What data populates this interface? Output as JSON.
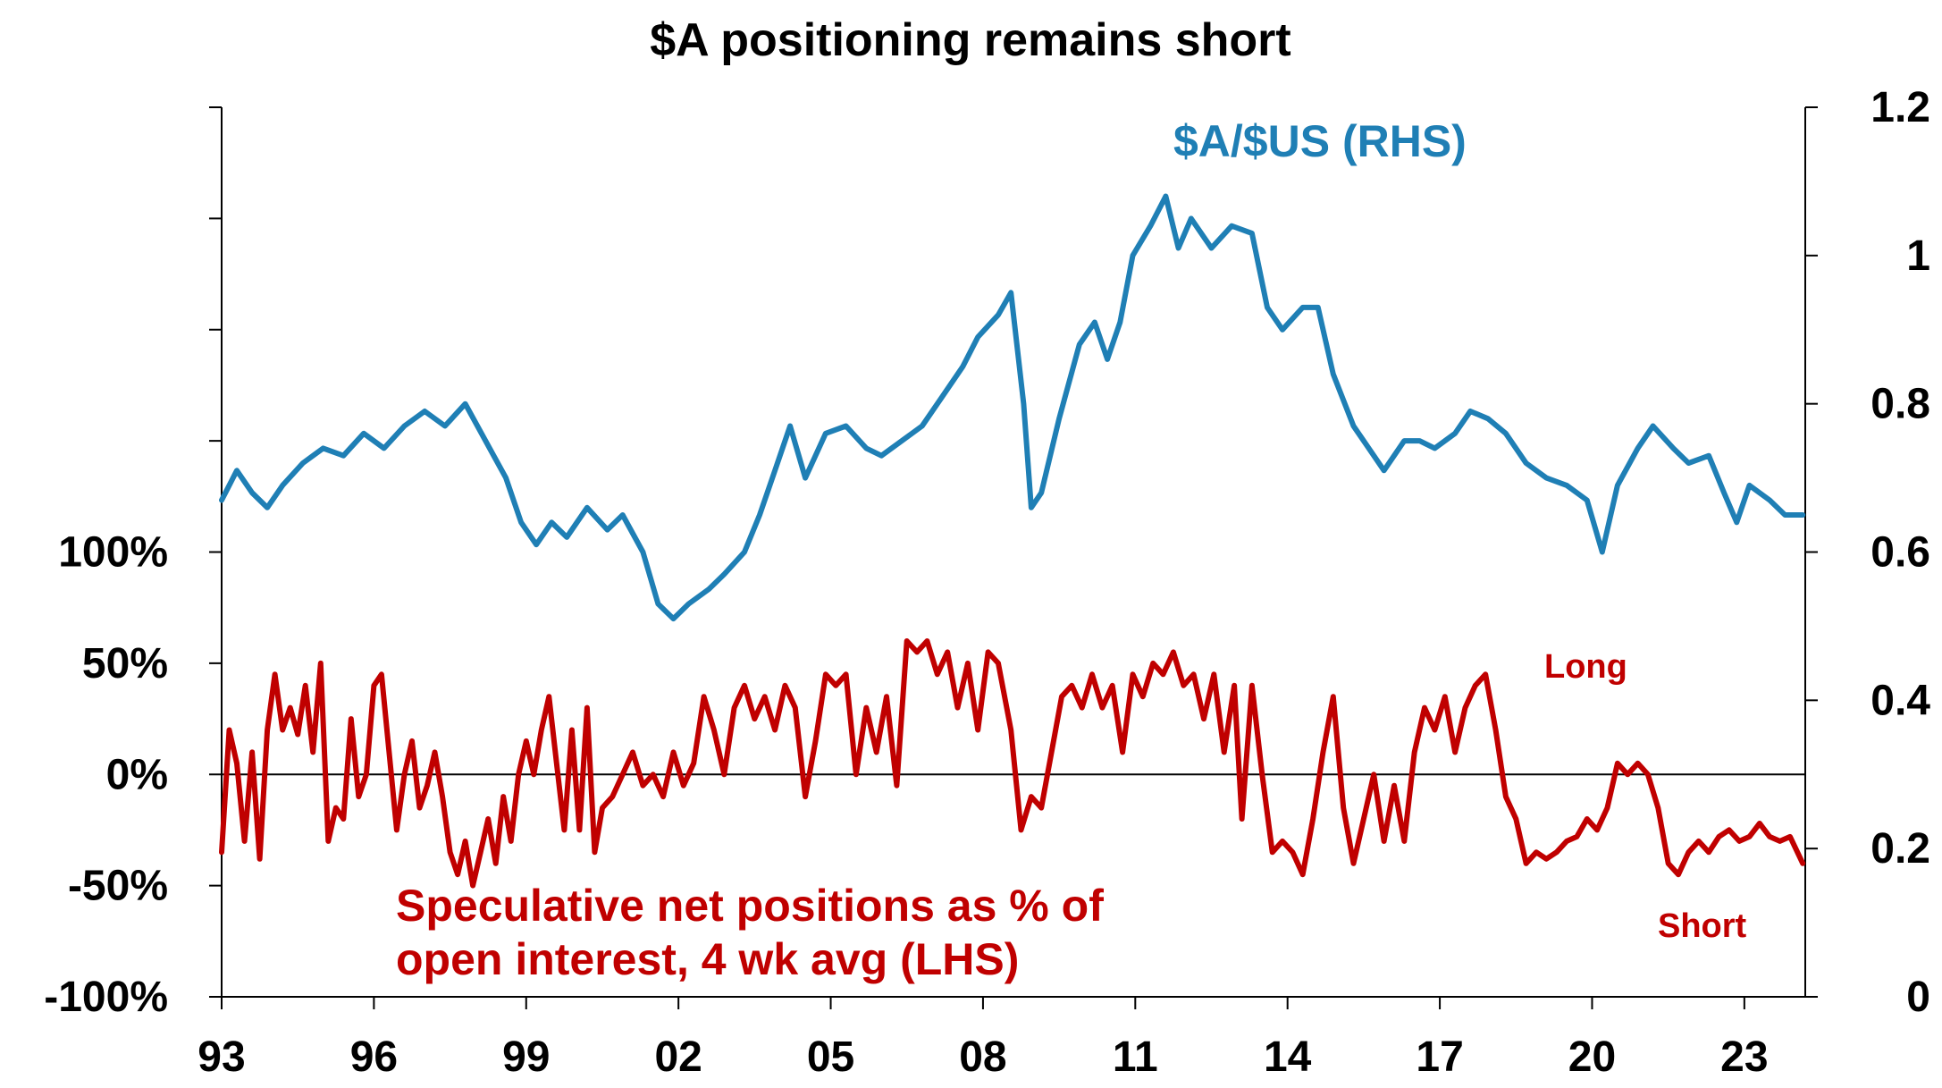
{
  "chart_data": {
    "type": "line",
    "title": "$A positioning remains short",
    "x_tick_labels": [
      "93",
      "96",
      "99",
      "02",
      "05",
      "08",
      "11",
      "14",
      "17",
      "20",
      "23"
    ],
    "x_tick_years": [
      1993,
      1996,
      1999,
      2002,
      2005,
      2008,
      2011,
      2014,
      2017,
      2020,
      2023
    ],
    "x_range": [
      1993,
      2024.2
    ],
    "left_axis": {
      "range": [
        -100,
        300
      ],
      "tick_values": [
        -100,
        -50,
        0,
        50,
        100
      ],
      "tick_labels": [
        "-100%",
        "-50%",
        "0%",
        "50%",
        "100%"
      ],
      "minor_tick_values": [
        150,
        200,
        250,
        300
      ]
    },
    "right_axis": {
      "range": [
        0,
        1.2
      ],
      "tick_values": [
        0,
        0.2,
        0.4,
        0.6,
        0.8,
        1.0,
        1.2
      ],
      "tick_labels": [
        "0",
        "0.2",
        "0.4",
        "0.6",
        "0.8",
        "1",
        "1.2"
      ]
    },
    "annotations": {
      "long": "Long",
      "short": "Short"
    },
    "colors": {
      "aud": "#1f7fb5",
      "positions": "#c00000",
      "axis": "#000000"
    },
    "series": [
      {
        "name": "$A/$US (RHS)",
        "axis": "right",
        "points": [
          [
            1993.0,
            0.67
          ],
          [
            1993.3,
            0.71
          ],
          [
            1993.6,
            0.68
          ],
          [
            1993.9,
            0.66
          ],
          [
            1994.2,
            0.69
          ],
          [
            1994.6,
            0.72
          ],
          [
            1995.0,
            0.74
          ],
          [
            1995.4,
            0.73
          ],
          [
            1995.8,
            0.76
          ],
          [
            1996.2,
            0.74
          ],
          [
            1996.6,
            0.77
          ],
          [
            1997.0,
            0.79
          ],
          [
            1997.4,
            0.77
          ],
          [
            1997.8,
            0.8
          ],
          [
            1998.2,
            0.75
          ],
          [
            1998.6,
            0.7
          ],
          [
            1998.9,
            0.64
          ],
          [
            1999.2,
            0.61
          ],
          [
            1999.5,
            0.64
          ],
          [
            1999.8,
            0.62
          ],
          [
            2000.2,
            0.66
          ],
          [
            2000.6,
            0.63
          ],
          [
            2000.9,
            0.65
          ],
          [
            2001.3,
            0.6
          ],
          [
            2001.6,
            0.53
          ],
          [
            2001.9,
            0.51
          ],
          [
            2002.2,
            0.53
          ],
          [
            2002.6,
            0.55
          ],
          [
            2002.9,
            0.57
          ],
          [
            2003.3,
            0.6
          ],
          [
            2003.6,
            0.65
          ],
          [
            2003.9,
            0.71
          ],
          [
            2004.2,
            0.77
          ],
          [
            2004.5,
            0.7
          ],
          [
            2004.9,
            0.76
          ],
          [
            2005.3,
            0.77
          ],
          [
            2005.7,
            0.74
          ],
          [
            2006.0,
            0.73
          ],
          [
            2006.4,
            0.75
          ],
          [
            2006.8,
            0.77
          ],
          [
            2007.2,
            0.81
          ],
          [
            2007.6,
            0.85
          ],
          [
            2007.9,
            0.89
          ],
          [
            2008.3,
            0.92
          ],
          [
            2008.55,
            0.95
          ],
          [
            2008.8,
            0.8
          ],
          [
            2008.95,
            0.66
          ],
          [
            2009.15,
            0.68
          ],
          [
            2009.5,
            0.78
          ],
          [
            2009.9,
            0.88
          ],
          [
            2010.2,
            0.91
          ],
          [
            2010.45,
            0.86
          ],
          [
            2010.7,
            0.91
          ],
          [
            2010.95,
            1.0
          ],
          [
            2011.3,
            1.04
          ],
          [
            2011.6,
            1.08
          ],
          [
            2011.85,
            1.01
          ],
          [
            2012.1,
            1.05
          ],
          [
            2012.5,
            1.01
          ],
          [
            2012.9,
            1.04
          ],
          [
            2013.3,
            1.03
          ],
          [
            2013.6,
            0.93
          ],
          [
            2013.9,
            0.9
          ],
          [
            2014.3,
            0.93
          ],
          [
            2014.6,
            0.93
          ],
          [
            2014.9,
            0.84
          ],
          [
            2015.3,
            0.77
          ],
          [
            2015.6,
            0.74
          ],
          [
            2015.9,
            0.71
          ],
          [
            2016.3,
            0.75
          ],
          [
            2016.6,
            0.75
          ],
          [
            2016.9,
            0.74
          ],
          [
            2017.3,
            0.76
          ],
          [
            2017.6,
            0.79
          ],
          [
            2017.95,
            0.78
          ],
          [
            2018.3,
            0.76
          ],
          [
            2018.7,
            0.72
          ],
          [
            2019.1,
            0.7
          ],
          [
            2019.5,
            0.69
          ],
          [
            2019.9,
            0.67
          ],
          [
            2020.2,
            0.6
          ],
          [
            2020.5,
            0.69
          ],
          [
            2020.9,
            0.74
          ],
          [
            2021.2,
            0.77
          ],
          [
            2021.6,
            0.74
          ],
          [
            2021.9,
            0.72
          ],
          [
            2022.3,
            0.73
          ],
          [
            2022.6,
            0.68
          ],
          [
            2022.85,
            0.64
          ],
          [
            2023.1,
            0.69
          ],
          [
            2023.5,
            0.67
          ],
          [
            2023.8,
            0.65
          ],
          [
            2024.15,
            0.65
          ]
        ]
      },
      {
        "name": "Speculative net positions as % of open interest, 4 wk avg (LHS)",
        "axis": "left",
        "points": [
          [
            1993.0,
            -35
          ],
          [
            1993.15,
            20
          ],
          [
            1993.3,
            5
          ],
          [
            1993.45,
            -30
          ],
          [
            1993.6,
            10
          ],
          [
            1993.75,
            -38
          ],
          [
            1993.9,
            20
          ],
          [
            1994.05,
            45
          ],
          [
            1994.2,
            20
          ],
          [
            1994.35,
            30
          ],
          [
            1994.5,
            18
          ],
          [
            1994.65,
            40
          ],
          [
            1994.8,
            10
          ],
          [
            1994.95,
            50
          ],
          [
            1995.1,
            -30
          ],
          [
            1995.25,
            -15
          ],
          [
            1995.4,
            -20
          ],
          [
            1995.55,
            25
          ],
          [
            1995.7,
            -10
          ],
          [
            1995.85,
            0
          ],
          [
            1996.0,
            40
          ],
          [
            1996.15,
            45
          ],
          [
            1996.3,
            10
          ],
          [
            1996.45,
            -25
          ],
          [
            1996.6,
            0
          ],
          [
            1996.75,
            15
          ],
          [
            1996.9,
            -15
          ],
          [
            1997.05,
            -5
          ],
          [
            1997.2,
            10
          ],
          [
            1997.35,
            -10
          ],
          [
            1997.5,
            -35
          ],
          [
            1997.65,
            -45
          ],
          [
            1997.8,
            -30
          ],
          [
            1997.95,
            -50
          ],
          [
            1998.1,
            -35
          ],
          [
            1998.25,
            -20
          ],
          [
            1998.4,
            -40
          ],
          [
            1998.55,
            -10
          ],
          [
            1998.7,
            -30
          ],
          [
            1998.85,
            0
          ],
          [
            1999.0,
            15
          ],
          [
            1999.15,
            0
          ],
          [
            1999.3,
            20
          ],
          [
            1999.45,
            35
          ],
          [
            1999.6,
            5
          ],
          [
            1999.75,
            -25
          ],
          [
            1999.9,
            20
          ],
          [
            2000.05,
            -25
          ],
          [
            2000.2,
            30
          ],
          [
            2000.35,
            -35
          ],
          [
            2000.5,
            -15
          ],
          [
            2000.7,
            -10
          ],
          [
            2000.9,
            0
          ],
          [
            2001.1,
            10
          ],
          [
            2001.3,
            -5
          ],
          [
            2001.5,
            0
          ],
          [
            2001.7,
            -10
          ],
          [
            2001.9,
            10
          ],
          [
            2002.1,
            -5
          ],
          [
            2002.3,
            5
          ],
          [
            2002.5,
            35
          ],
          [
            2002.7,
            20
          ],
          [
            2002.9,
            0
          ],
          [
            2003.1,
            30
          ],
          [
            2003.3,
            40
          ],
          [
            2003.5,
            25
          ],
          [
            2003.7,
            35
          ],
          [
            2003.9,
            20
          ],
          [
            2004.1,
            40
          ],
          [
            2004.3,
            30
          ],
          [
            2004.5,
            -10
          ],
          [
            2004.7,
            15
          ],
          [
            2004.9,
            45
          ],
          [
            2005.1,
            40
          ],
          [
            2005.3,
            45
          ],
          [
            2005.5,
            0
          ],
          [
            2005.7,
            30
          ],
          [
            2005.9,
            10
          ],
          [
            2006.1,
            35
          ],
          [
            2006.3,
            -5
          ],
          [
            2006.5,
            60
          ],
          [
            2006.7,
            55
          ],
          [
            2006.9,
            60
          ],
          [
            2007.1,
            45
          ],
          [
            2007.3,
            55
          ],
          [
            2007.5,
            30
          ],
          [
            2007.7,
            50
          ],
          [
            2007.9,
            20
          ],
          [
            2008.1,
            55
          ],
          [
            2008.3,
            50
          ],
          [
            2008.55,
            20
          ],
          [
            2008.75,
            -25
          ],
          [
            2008.95,
            -10
          ],
          [
            2009.15,
            -15
          ],
          [
            2009.35,
            10
          ],
          [
            2009.55,
            35
          ],
          [
            2009.75,
            40
          ],
          [
            2009.95,
            30
          ],
          [
            2010.15,
            45
          ],
          [
            2010.35,
            30
          ],
          [
            2010.55,
            40
          ],
          [
            2010.75,
            10
          ],
          [
            2010.95,
            45
          ],
          [
            2011.15,
            35
          ],
          [
            2011.35,
            50
          ],
          [
            2011.55,
            45
          ],
          [
            2011.75,
            55
          ],
          [
            2011.95,
            40
          ],
          [
            2012.15,
            45
          ],
          [
            2012.35,
            25
          ],
          [
            2012.55,
            45
          ],
          [
            2012.75,
            10
          ],
          [
            2012.95,
            40
          ],
          [
            2013.1,
            -20
          ],
          [
            2013.3,
            40
          ],
          [
            2013.5,
            0
          ],
          [
            2013.7,
            -35
          ],
          [
            2013.9,
            -30
          ],
          [
            2014.1,
            -35
          ],
          [
            2014.3,
            -45
          ],
          [
            2014.5,
            -20
          ],
          [
            2014.7,
            10
          ],
          [
            2014.9,
            35
          ],
          [
            2015.1,
            -15
          ],
          [
            2015.3,
            -40
          ],
          [
            2015.5,
            -20
          ],
          [
            2015.7,
            0
          ],
          [
            2015.9,
            -30
          ],
          [
            2016.1,
            -5
          ],
          [
            2016.3,
            -30
          ],
          [
            2016.5,
            10
          ],
          [
            2016.7,
            30
          ],
          [
            2016.9,
            20
          ],
          [
            2017.1,
            35
          ],
          [
            2017.3,
            10
          ],
          [
            2017.5,
            30
          ],
          [
            2017.7,
            40
          ],
          [
            2017.9,
            45
          ],
          [
            2018.1,
            20
          ],
          [
            2018.3,
            -10
          ],
          [
            2018.5,
            -20
          ],
          [
            2018.7,
            -40
          ],
          [
            2018.9,
            -35
          ],
          [
            2019.1,
            -38
          ],
          [
            2019.3,
            -35
          ],
          [
            2019.5,
            -30
          ],
          [
            2019.7,
            -28
          ],
          [
            2019.9,
            -20
          ],
          [
            2020.1,
            -25
          ],
          [
            2020.3,
            -15
          ],
          [
            2020.5,
            5
          ],
          [
            2020.7,
            0
          ],
          [
            2020.9,
            5
          ],
          [
            2021.1,
            0
          ],
          [
            2021.3,
            -15
          ],
          [
            2021.5,
            -40
          ],
          [
            2021.7,
            -45
          ],
          [
            2021.9,
            -35
          ],
          [
            2022.1,
            -30
          ],
          [
            2022.3,
            -35
          ],
          [
            2022.5,
            -28
          ],
          [
            2022.7,
            -25
          ],
          [
            2022.9,
            -30
          ],
          [
            2023.1,
            -28
          ],
          [
            2023.3,
            -22
          ],
          [
            2023.5,
            -28
          ],
          [
            2023.7,
            -30
          ],
          [
            2023.9,
            -28
          ],
          [
            2024.15,
            -40
          ]
        ]
      }
    ]
  }
}
